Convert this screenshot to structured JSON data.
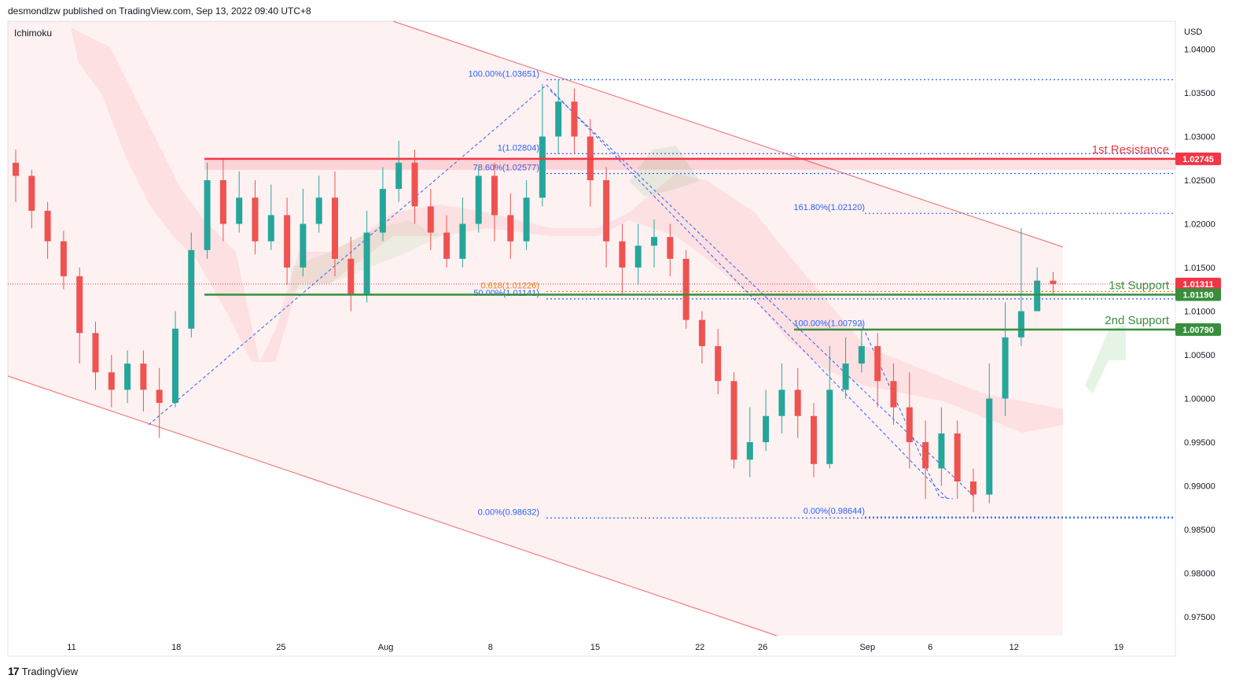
{
  "header": {
    "published": "desmondlzw published on TradingView.com, Sep 13, 2022 09:40 UTC+8"
  },
  "footer": {
    "brand": "TradingView",
    "logo_glyph": "17"
  },
  "chart_data": {
    "type": "candlestick",
    "indicator": "Ichimoku",
    "currency": "USD",
    "y_ticks": [
      "1.04000",
      "1.03500",
      "1.03000",
      "1.02500",
      "1.02000",
      "1.01500",
      "1.01000",
      "1.00500",
      "1.00000",
      "0.99500",
      "0.99000",
      "0.98500",
      "0.98000",
      "0.97500"
    ],
    "y_tick_values": [
      1.04,
      1.035,
      1.03,
      1.025,
      1.02,
      1.015,
      1.01,
      1.005,
      1.0,
      0.995,
      0.99,
      0.985,
      0.98,
      0.975
    ],
    "ylim": [
      0.9705,
      1.0432
    ],
    "x_ticks": [
      "11",
      "18",
      "25",
      "Aug",
      "8",
      "15",
      "22",
      "26",
      "Sep",
      "6",
      "12",
      "19"
    ],
    "x_tick_index": [
      0,
      5,
      10,
      15,
      20,
      25,
      30,
      33,
      38,
      41,
      45,
      50
    ],
    "price_levels": [
      {
        "name": "1st Resistance",
        "value": 1.02745,
        "badge": "1.02745",
        "color": "#f23645"
      },
      {
        "name": "1st Support",
        "value": 1.0119,
        "badge": "1.01190",
        "color": "#388e3c"
      },
      {
        "name": "2nd Support",
        "value": 1.0079,
        "badge": "1.00790",
        "color": "#388e3c"
      }
    ],
    "last_price": {
      "value": 1.01311,
      "badge": "1.01311",
      "color": "#f23645"
    },
    "fib_labels": [
      {
        "text": "100.00%(1.03651)",
        "value": 1.03651,
        "color": "#2962ff"
      },
      {
        "text": "1(1.02804)",
        "value": 1.02804,
        "color": "#2962ff"
      },
      {
        "text": "78.60%(1.02577)",
        "value": 1.02577,
        "color": "#2962ff"
      },
      {
        "text": "161.80%(1.02120)",
        "value": 1.0212,
        "color": "#2962ff"
      },
      {
        "text": "0.618(1.01226)",
        "value": 1.01226,
        "color": "#f57f17"
      },
      {
        "text": "50.00%(1.01141)",
        "value": 1.01141,
        "color": "#2962ff"
      },
      {
        "text": "100.00%(1.00792)",
        "value": 1.00792,
        "color": "#2962ff"
      },
      {
        "text": "0.00%(0.98632)",
        "value": 0.98632,
        "color": "#2962ff"
      },
      {
        "text": "0.00%(0.98644)",
        "value": 0.98644,
        "color": "#2962ff"
      }
    ],
    "candles": [
      [
        1.027,
        1.0255,
        1.0285,
        1.0225
      ],
      [
        1.0255,
        1.0215,
        1.0262,
        1.0195
      ],
      [
        1.0215,
        1.018,
        1.0225,
        1.016
      ],
      [
        1.018,
        1.014,
        1.0192,
        1.0125
      ],
      [
        1.014,
        1.0075,
        1.015,
        1.004
      ],
      [
        1.0075,
        1.003,
        1.0088,
        1.001
      ],
      [
        1.003,
        1.001,
        1.005,
        0.999
      ],
      [
        1.001,
        1.004,
        1.0055,
        0.9995
      ],
      [
        1.004,
        1.001,
        1.0055,
        0.9985
      ],
      [
        1.001,
        0.9995,
        1.0035,
        0.9955
      ],
      [
        0.9995,
        1.008,
        1.01,
        0.999
      ],
      [
        1.008,
        1.017,
        1.019,
        1.007
      ],
      [
        1.017,
        1.025,
        1.027,
        1.016
      ],
      [
        1.025,
        1.02,
        1.0275,
        1.018
      ],
      [
        1.02,
        1.023,
        1.026,
        1.019
      ],
      [
        1.023,
        1.018,
        1.025,
        1.0165
      ],
      [
        1.018,
        1.021,
        1.0245,
        1.017
      ],
      [
        1.021,
        1.015,
        1.023,
        1.013
      ],
      [
        1.015,
        1.02,
        1.024,
        1.014
      ],
      [
        1.02,
        1.023,
        1.0255,
        1.019
      ],
      [
        1.023,
        1.016,
        1.026,
        1.014
      ],
      [
        1.016,
        1.012,
        1.0185,
        1.01
      ],
      [
        1.012,
        1.019,
        1.0215,
        1.011
      ],
      [
        1.019,
        1.024,
        1.0265,
        1.018
      ],
      [
        1.024,
        1.027,
        1.0295,
        1.0225
      ],
      [
        1.027,
        1.022,
        1.0285,
        1.02
      ],
      [
        1.022,
        1.019,
        1.024,
        1.017
      ],
      [
        1.019,
        1.016,
        1.021,
        1.015
      ],
      [
        1.016,
        1.02,
        1.023,
        1.015
      ],
      [
        1.02,
        1.0255,
        1.0265,
        1.019
      ],
      [
        1.0255,
        1.021,
        1.027,
        1.018
      ],
      [
        1.021,
        1.018,
        1.0235,
        1.016
      ],
      [
        1.018,
        1.023,
        1.025,
        1.017
      ],
      [
        1.023,
        1.03,
        1.036,
        1.022
      ],
      [
        1.03,
        1.034,
        1.0365,
        1.028
      ],
      [
        1.034,
        1.03,
        1.0355,
        1.028
      ],
      [
        1.03,
        1.025,
        1.032,
        1.022
      ],
      [
        1.025,
        1.018,
        1.0265,
        1.015
      ],
      [
        1.018,
        1.015,
        1.02,
        1.012
      ],
      [
        1.015,
        1.0175,
        1.02,
        1.013
      ],
      [
        1.0175,
        1.0185,
        1.0205,
        1.015
      ],
      [
        1.0185,
        1.016,
        1.02,
        1.014
      ],
      [
        1.016,
        1.009,
        1.017,
        1.008
      ],
      [
        1.009,
        1.006,
        1.01,
        1.004
      ],
      [
        1.006,
        1.002,
        1.008,
        1.0005
      ],
      [
        1.002,
        0.993,
        1.003,
        0.992
      ],
      [
        0.993,
        0.995,
        0.999,
        0.991
      ],
      [
        0.995,
        0.998,
        1.001,
        0.994
      ],
      [
        0.998,
        1.001,
        1.004,
        0.996
      ],
      [
        1.001,
        0.998,
        1.0035,
        0.9955
      ],
      [
        0.998,
        0.9925,
        0.9995,
        0.991
      ],
      [
        0.9925,
        1.001,
        1.006,
        0.992
      ],
      [
        1.001,
        1.004,
        1.007,
        1.0
      ],
      [
        1.004,
        1.006,
        1.008,
        1.003
      ],
      [
        1.006,
        1.002,
        1.0075,
        0.999
      ],
      [
        1.002,
        0.999,
        1.004,
        0.997
      ],
      [
        0.999,
        0.995,
        1.003,
        0.992
      ],
      [
        0.995,
        0.992,
        0.9975,
        0.9885
      ],
      [
        0.992,
        0.996,
        0.999,
        0.99
      ],
      [
        0.996,
        0.9905,
        0.9975,
        0.9885
      ],
      [
        0.9905,
        0.989,
        0.992,
        0.987
      ],
      [
        0.989,
        1.0,
        1.004,
        0.988
      ],
      [
        1.0,
        1.007,
        1.011,
        0.998
      ],
      [
        1.007,
        1.01,
        1.0195,
        1.006
      ],
      [
        1.01,
        1.0135,
        1.015,
        1.011
      ],
      [
        1.0135,
        1.0131,
        1.0145,
        1.012
      ]
    ]
  }
}
